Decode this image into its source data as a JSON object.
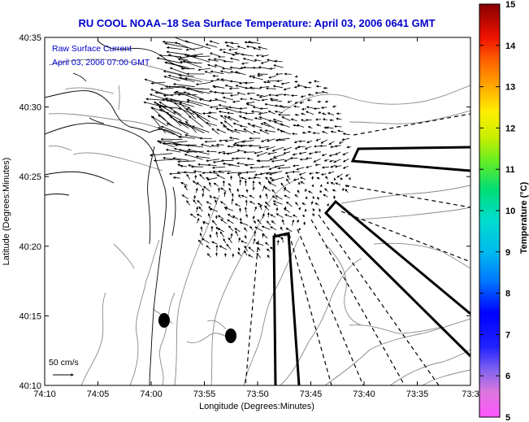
{
  "title": "RU COOL  NOAA–18  Sea Surface Temperature:  April 03, 2006 0641 GMT",
  "current_legend": {
    "line1": "Raw Surface Current",
    "line2": "April 03, 2006 07:00 GMT"
  },
  "scale_label": "50 cm/s",
  "axes": {
    "xlabel": "Longitude (Degrees:Minutes)",
    "ylabel": "Latitude (Degrees:Minutes)",
    "x_ticks": [
      "74:10",
      "74:05",
      "74:00",
      "73:55",
      "73:50",
      "73:45",
      "73:40",
      "73:35",
      "73:3"
    ],
    "y_ticks": [
      "40:35",
      "40:30",
      "40:25",
      "40:20",
      "40:15",
      "40:10"
    ]
  },
  "colorbar": {
    "label": "Temperature (°C)",
    "ticks": [
      "15",
      "14",
      "13",
      "12",
      "11",
      "10",
      "9",
      "8",
      "7",
      "6",
      "5"
    ],
    "min": 5,
    "max": 15
  },
  "colors": {
    "title": "#0000cc",
    "frame": "#000000",
    "coast": "#000000",
    "bathymetry": "#888888"
  }
}
